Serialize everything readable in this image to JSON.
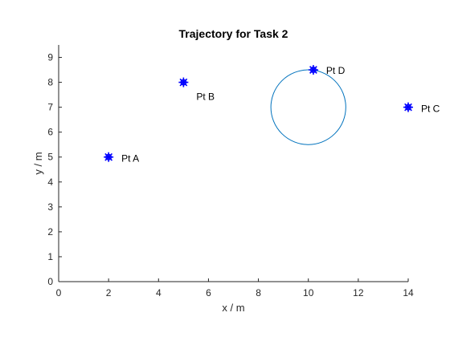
{
  "chart_data": {
    "type": "scatter",
    "title": "Trajectory for Task 2",
    "xlabel": "x / m",
    "ylabel": "y / m",
    "xlim": [
      0,
      14
    ],
    "ylim": [
      0,
      9.5
    ],
    "xticks": [
      0,
      2,
      4,
      6,
      8,
      10,
      12,
      14
    ],
    "yticks": [
      0,
      1,
      2,
      3,
      4,
      5,
      6,
      7,
      8,
      9
    ],
    "grid": false,
    "points": [
      {
        "label": "Pt A",
        "x": 2,
        "y": 5
      },
      {
        "label": "Pt B",
        "x": 5,
        "y": 8
      },
      {
        "label": "Pt C",
        "x": 14,
        "y": 7
      },
      {
        "label": "Pt D",
        "x": 10.2,
        "y": 8.5
      }
    ],
    "trajectory": {
      "shape": "circle",
      "center": [
        10,
        7
      ],
      "radius": 1.5
    },
    "colors": {
      "marker": "#0000ff",
      "trajectory": "#0072bd",
      "axis": "#262626"
    }
  }
}
